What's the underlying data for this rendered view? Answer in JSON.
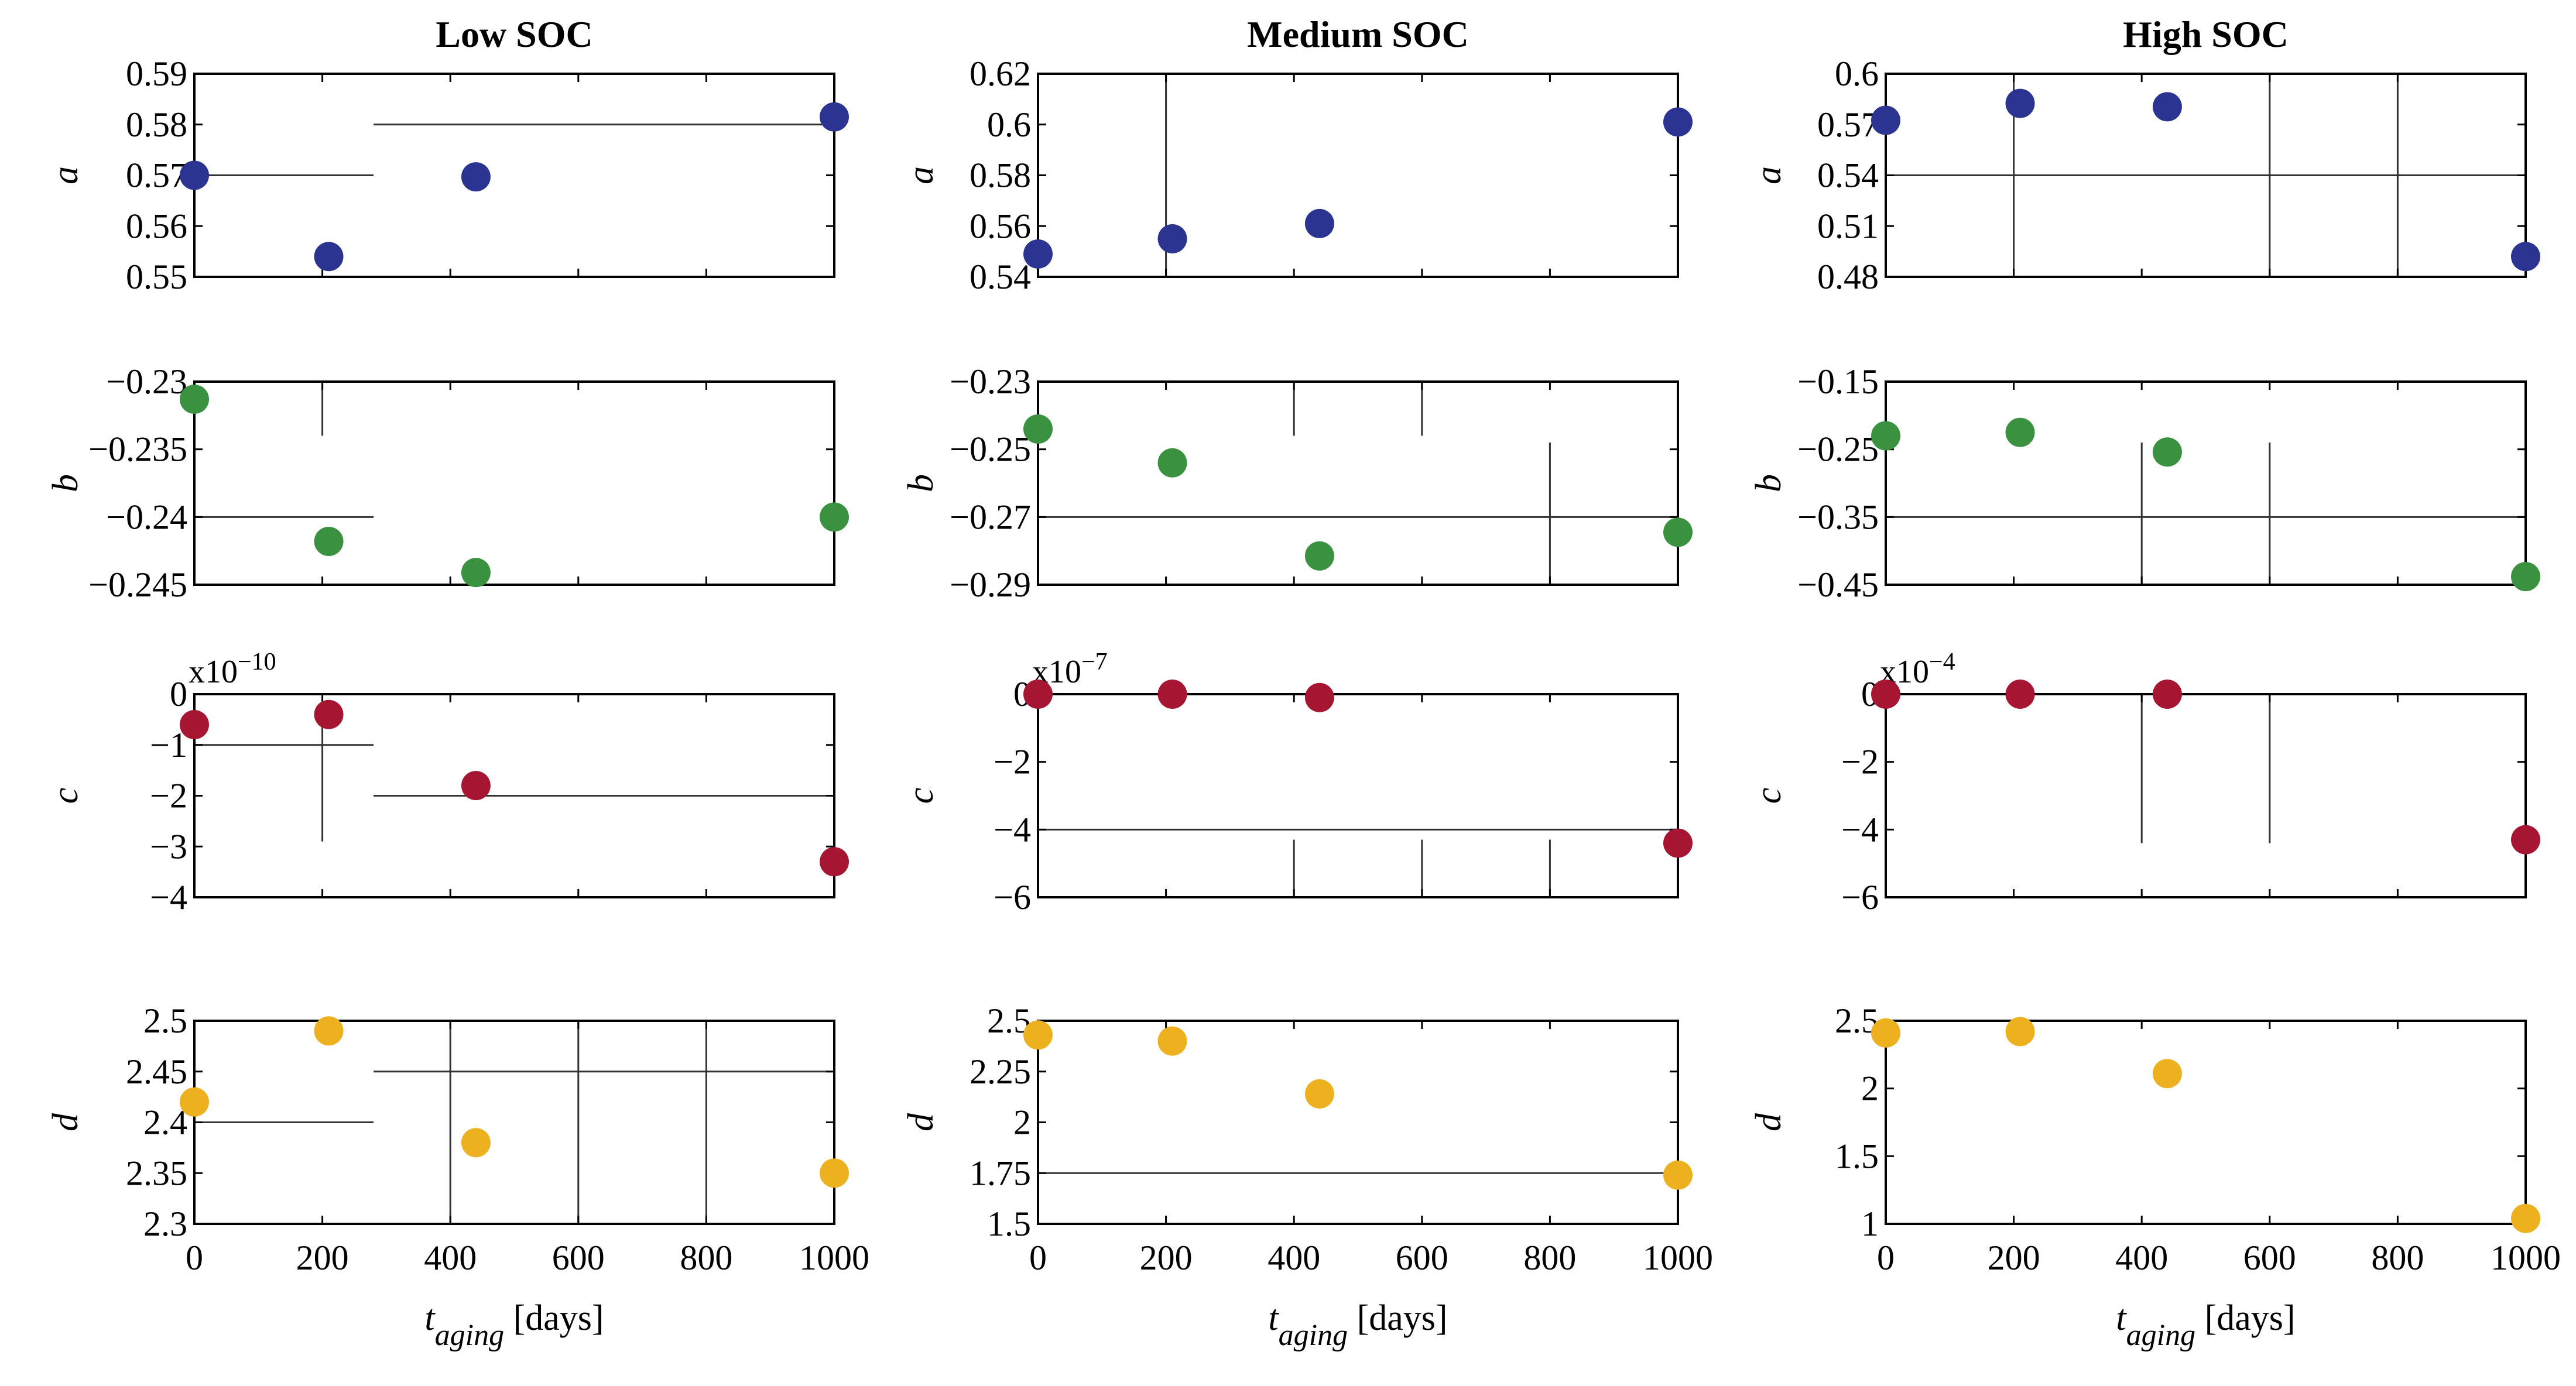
{
  "chart_data": {
    "type": "scatter",
    "columns": [
      "Low SOC",
      "Medium SOC",
      "High SOC"
    ],
    "parameters": [
      "a",
      "b",
      "c",
      "d"
    ],
    "colors": {
      "a": "#2B3591",
      "b": "#3A9140",
      "c": "#A61632",
      "d": "#EDB120"
    },
    "x_ticks": [
      "0",
      "200",
      "400",
      "600",
      "800",
      "1000"
    ],
    "xlim": [
      0,
      1000
    ],
    "x": [
      0,
      210,
      440,
      1000
    ],
    "xlabel_var": "t",
    "xlabel_sub": "aging",
    "xlabel_unit": "[days]",
    "panels": [
      [
        {
          "param": "a",
          "ylim": [
            0.55,
            0.59
          ],
          "ticks": [
            0.59,
            0.58,
            0.57,
            0.56,
            0.55
          ],
          "tick_labels": [
            "0.59",
            "0.58",
            "0.57",
            "0.56",
            "0.55"
          ],
          "values": [
            0.57,
            0.554,
            0.5697,
            0.5815
          ],
          "exponent": "",
          "guides": [
            {
              "orient": "h",
              "v": 0.57,
              "a": 0,
              "b": 280
            },
            {
              "orient": "h",
              "v": 0.58,
              "a": 280,
              "b": 1000
            }
          ]
        },
        {
          "param": "b",
          "ylim": [
            -0.245,
            -0.23
          ],
          "ticks": [
            -0.23,
            -0.235,
            -0.24,
            -0.245
          ],
          "tick_labels": [
            "−0.23",
            "−0.235",
            "−0.24",
            "−0.245"
          ],
          "values": [
            -0.2313,
            -0.2418,
            -0.2441,
            -0.24
          ],
          "exponent": "",
          "guides": [
            {
              "orient": "h",
              "v": -0.24,
              "a": 0,
              "b": 280
            },
            {
              "orient": "v",
              "v": 200,
              "a": -0.234,
              "b": -0.23
            }
          ]
        },
        {
          "param": "c",
          "ylim": [
            -4,
            0
          ],
          "ticks": [
            0,
            -1,
            -2,
            -3,
            -4
          ],
          "tick_labels": [
            "0",
            "−1",
            "−2",
            "−3",
            "−4"
          ],
          "values": [
            -0.6,
            -0.4,
            -1.8,
            -3.3
          ],
          "exponent": "x10",
          "exp_power": "−10",
          "guides": [
            {
              "orient": "h",
              "v": -1,
              "a": 0,
              "b": 280
            },
            {
              "orient": "h",
              "v": -2,
              "a": 280,
              "b": 1000
            },
            {
              "orient": "v",
              "v": 200,
              "a": -2.9,
              "b": -0.6
            }
          ]
        },
        {
          "param": "d",
          "ylim": [
            2.3,
            2.5
          ],
          "ticks": [
            2.5,
            2.45,
            2.4,
            2.35,
            2.3
          ],
          "tick_labels": [
            "2.5",
            "2.45",
            "2.4",
            "2.35",
            "2.3"
          ],
          "values": [
            2.42,
            2.49,
            2.38,
            2.35
          ],
          "exponent": "",
          "guides": [
            {
              "orient": "h",
              "v": 2.4,
              "a": 0,
              "b": 280
            },
            {
              "orient": "h",
              "v": 2.45,
              "a": 280,
              "b": 1000
            },
            {
              "orient": "v",
              "v": 400,
              "a": 2.3,
              "b": 2.5
            },
            {
              "orient": "v",
              "v": 600,
              "a": 2.3,
              "b": 2.5
            },
            {
              "orient": "v",
              "v": 800,
              "a": 2.3,
              "b": 2.5
            }
          ]
        }
      ],
      [
        {
          "param": "a",
          "ylim": [
            0.54,
            0.62
          ],
          "ticks": [
            0.62,
            0.6,
            0.58,
            0.56,
            0.54
          ],
          "tick_labels": [
            "0.62",
            "0.6",
            "0.58",
            "0.56",
            "0.54"
          ],
          "values": [
            0.549,
            0.555,
            0.561,
            0.601
          ],
          "exponent": "",
          "guides": [
            {
              "orient": "v",
              "v": 200,
              "a": 0.54,
              "b": 0.62
            }
          ]
        },
        {
          "param": "b",
          "ylim": [
            -0.29,
            -0.23
          ],
          "ticks": [
            -0.23,
            -0.25,
            -0.27,
            -0.29
          ],
          "tick_labels": [
            "−0.23",
            "−0.25",
            "−0.27",
            "−0.29"
          ],
          "values": [
            -0.244,
            -0.254,
            -0.2815,
            -0.2745
          ],
          "exponent": "",
          "guides": [
            {
              "orient": "h",
              "v": -0.27,
              "a": 0,
              "b": 1000
            },
            {
              "orient": "v",
              "v": 400,
              "a": -0.246,
              "b": -0.23
            },
            {
              "orient": "v",
              "v": 600,
              "a": -0.246,
              "b": -0.23
            },
            {
              "orient": "v",
              "v": 800,
              "a": -0.29,
              "b": -0.248
            }
          ]
        },
        {
          "param": "c",
          "ylim": [
            -6,
            0
          ],
          "ticks": [
            0,
            -2,
            -4,
            -6
          ],
          "tick_labels": [
            "0",
            "−2",
            "−4",
            "−6"
          ],
          "values": [
            0,
            0,
            -0.1,
            -4.4
          ],
          "exponent": "x10",
          "exp_power": "−7",
          "guides": [
            {
              "orient": "h",
              "v": -4,
              "a": 0,
              "b": 1000
            },
            {
              "orient": "v",
              "v": 400,
              "a": -6,
              "b": -4.3
            },
            {
              "orient": "v",
              "v": 600,
              "a": -6,
              "b": -4.3
            },
            {
              "orient": "v",
              "v": 800,
              "a": -6,
              "b": -4.3
            }
          ]
        },
        {
          "param": "d",
          "ylim": [
            1.5,
            2.5
          ],
          "ticks": [
            2.5,
            2.25,
            2,
            1.75,
            1.5
          ],
          "tick_labels": [
            "2.5",
            "2.25",
            "2",
            "1.75",
            "1.5"
          ],
          "values": [
            2.43,
            2.4,
            2.14,
            1.74
          ],
          "exponent": "",
          "guides": [
            {
              "orient": "h",
              "v": 1.75,
              "a": 0,
              "b": 1000
            }
          ]
        }
      ],
      [
        {
          "param": "a",
          "ylim": [
            0.48,
            0.6
          ],
          "ticks": [
            0.6,
            0.57,
            0.54,
            0.51,
            0.48
          ],
          "tick_labels": [
            "0.6",
            "0.57",
            "0.54",
            "0.51",
            "0.48"
          ],
          "values": [
            0.5725,
            0.5825,
            0.5805,
            0.492
          ],
          "exponent": "",
          "guides": [
            {
              "orient": "h",
              "v": 0.54,
              "a": 0,
              "b": 1000
            },
            {
              "orient": "v",
              "v": 200,
              "a": 0.48,
              "b": 0.6
            },
            {
              "orient": "v",
              "v": 600,
              "a": 0.48,
              "b": 0.6
            },
            {
              "orient": "v",
              "v": 800,
              "a": 0.48,
              "b": 0.6
            }
          ]
        },
        {
          "param": "b",
          "ylim": [
            -0.45,
            -0.15
          ],
          "ticks": [
            -0.15,
            -0.25,
            -0.35,
            -0.45
          ],
          "tick_labels": [
            "−0.15",
            "−0.25",
            "−0.35",
            "−0.45"
          ],
          "values": [
            -0.23,
            -0.225,
            -0.254,
            -0.438
          ],
          "exponent": "",
          "guides": [
            {
              "orient": "h",
              "v": -0.35,
              "a": 0,
              "b": 1000
            },
            {
              "orient": "v",
              "v": 400,
              "a": -0.45,
              "b": -0.24
            },
            {
              "orient": "v",
              "v": 600,
              "a": -0.45,
              "b": -0.24
            }
          ]
        },
        {
          "param": "c",
          "ylim": [
            -6,
            0
          ],
          "ticks": [
            0,
            -2,
            -4,
            -6
          ],
          "tick_labels": [
            "0",
            "−2",
            "−4",
            "−6"
          ],
          "values": [
            0,
            0,
            0,
            -4.3
          ],
          "exponent": "x10",
          "exp_power": "−4",
          "guides": [
            {
              "orient": "v",
              "v": 400,
              "a": -4.4,
              "b": 0
            },
            {
              "orient": "v",
              "v": 600,
              "a": -4.4,
              "b": 0
            }
          ]
        },
        {
          "param": "d",
          "ylim": [
            1,
            2.5
          ],
          "ticks": [
            2.5,
            2,
            1.5,
            1
          ],
          "tick_labels": [
            "2.5",
            "2",
            "1.5",
            "1"
          ],
          "values": [
            2.41,
            2.42,
            2.11,
            1.04
          ],
          "exponent": "",
          "guides": []
        }
      ]
    ]
  }
}
